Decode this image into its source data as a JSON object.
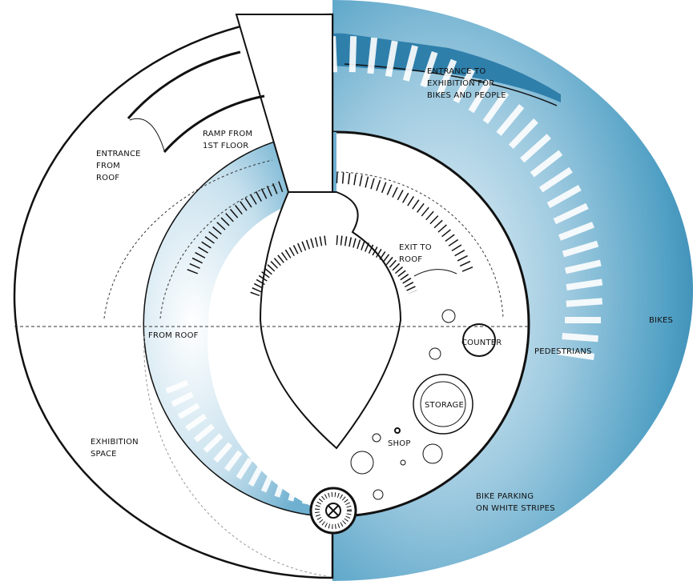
{
  "labels": [
    {
      "lines": [
        "ENTRANCE TO",
        "EXHIBITION FOR",
        "BIKES AND PEOPLE"
      ]
    },
    {
      "lines": [
        "RAMP FROM",
        "1ST FLOOR"
      ]
    },
    {
      "lines": [
        "ENTRANCE",
        "FROM",
        "ROOF"
      ]
    },
    {
      "lines": [
        "EXIT TO",
        "ROOF"
      ]
    },
    {
      "lines": [
        "FROM ROOF"
      ]
    },
    {
      "lines": [
        "COUNTER"
      ]
    },
    {
      "lines": [
        "PEDESTRIANS"
      ]
    },
    {
      "lines": [
        "BIKES"
      ]
    },
    {
      "lines": [
        "STORAGE"
      ]
    },
    {
      "lines": [
        "SHOP"
      ]
    },
    {
      "lines": [
        "EXHIBITION",
        "SPACE"
      ]
    },
    {
      "lines": [
        "BIKE PARKING",
        "ON WHITE STRIPES"
      ]
    }
  ]
}
